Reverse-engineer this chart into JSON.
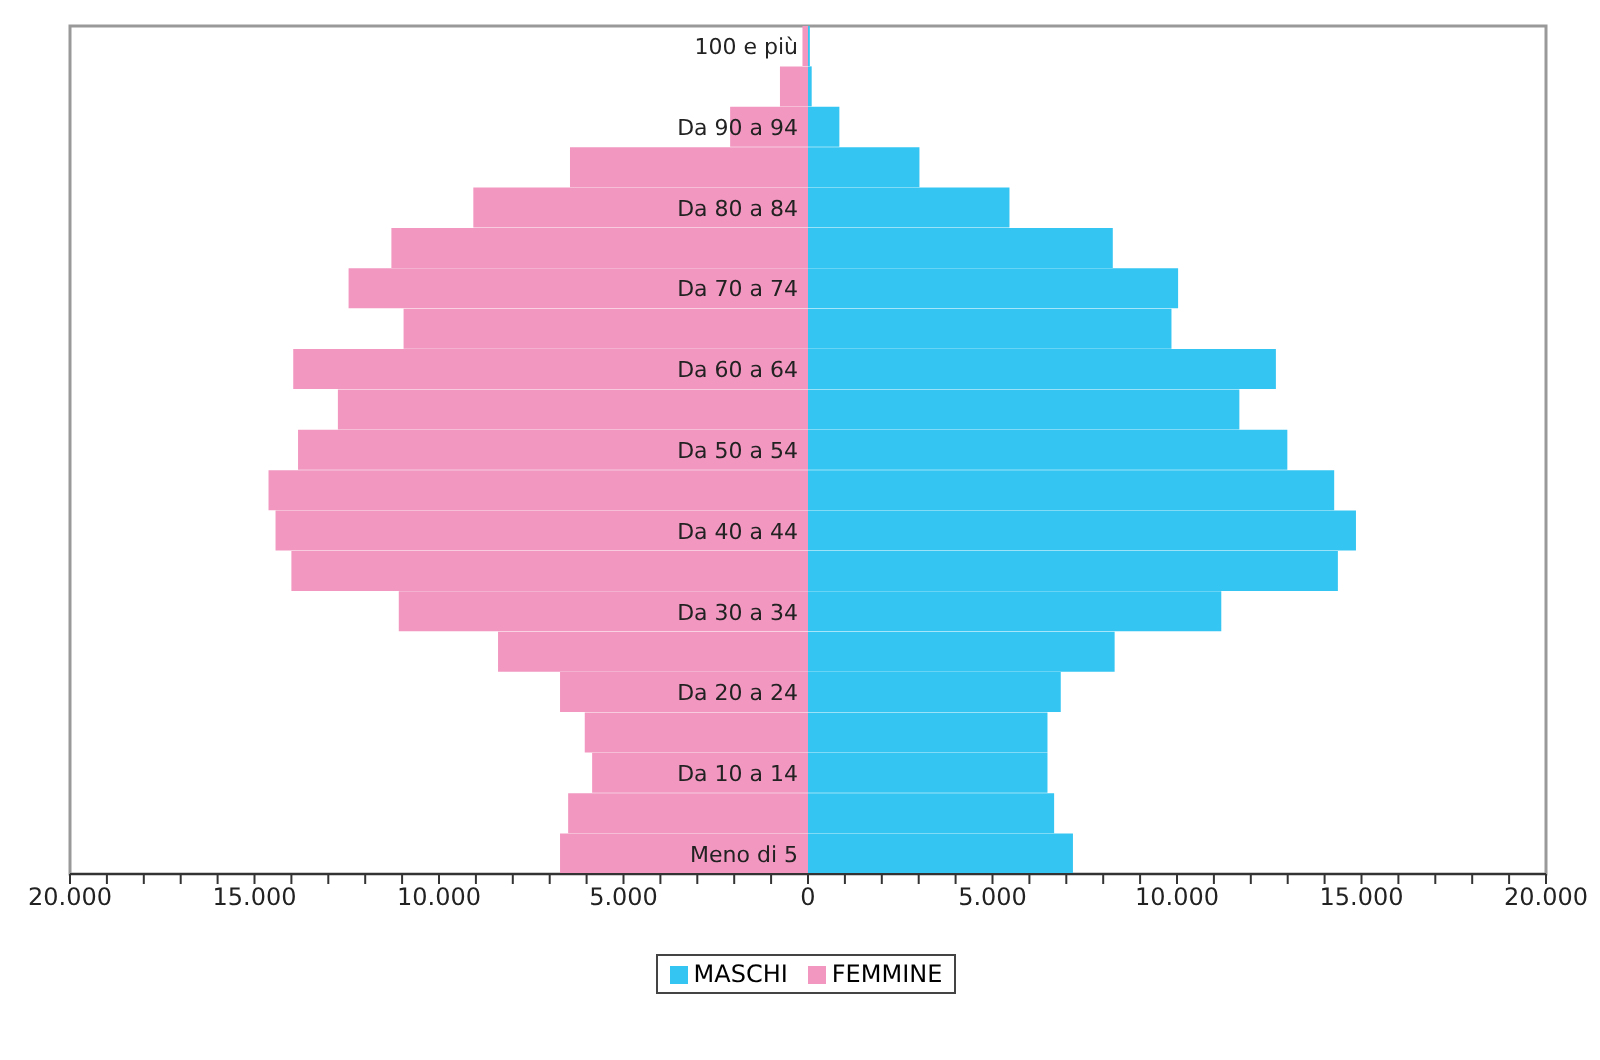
{
  "chart_data": {
    "type": "bar",
    "orientation": "horizontal",
    "stacked": true,
    "categories": [
      "100 e più",
      null,
      "Da 90 a 94",
      null,
      "Da 80 a 84",
      null,
      "Da 70 a 74",
      null,
      "Da 60 a 64",
      null,
      "Da 50 a 54",
      null,
      "Da 40 a 44",
      null,
      "Da 30 a 34",
      null,
      "Da 20 a 24",
      null,
      "Da 10 a 14",
      null,
      "Meno di 5"
    ],
    "series": [
      {
        "name": "MASCHI",
        "color": "#35c5f2",
        "values": [
          50,
          100,
          850,
          3020,
          5460,
          8260,
          10030,
          9850,
          12680,
          11690,
          12990,
          14260,
          14850,
          14360,
          11200,
          8310,
          6850,
          6490,
          6490,
          6670,
          7180
        ]
      },
      {
        "name": "FEMMINE",
        "color": "#f297c0",
        "values": [
          -150,
          -760,
          -2110,
          -6450,
          -9070,
          -11290,
          -12450,
          -10960,
          -13950,
          -12740,
          -13820,
          -14620,
          -14430,
          -14000,
          -11090,
          -8400,
          -6720,
          -6050,
          -5850,
          -6500,
          -6720
        ]
      }
    ],
    "xlim": [
      -20000,
      20000
    ],
    "xticks": [
      {
        "value": -20000,
        "label": "20.000"
      },
      {
        "value": -19000,
        "label": null
      },
      {
        "value": -18000,
        "label": null
      },
      {
        "value": -17000,
        "label": null
      },
      {
        "value": -16000,
        "label": null
      },
      {
        "value": -15000,
        "label": "15.000"
      },
      {
        "value": -14000,
        "label": null
      },
      {
        "value": -13000,
        "label": null
      },
      {
        "value": -12000,
        "label": null
      },
      {
        "value": -11000,
        "label": null
      },
      {
        "value": -10000,
        "label": "10.000"
      },
      {
        "value": -9000,
        "label": null
      },
      {
        "value": -8000,
        "label": null
      },
      {
        "value": -7000,
        "label": null
      },
      {
        "value": -6000,
        "label": null
      },
      {
        "value": -5000,
        "label": "5.000"
      },
      {
        "value": -4000,
        "label": null
      },
      {
        "value": -3000,
        "label": null
      },
      {
        "value": -2000,
        "label": null
      },
      {
        "value": -1000,
        "label": null
      },
      0,
      {
        "value": 1000,
        "label": null
      },
      {
        "value": 2000,
        "label": null
      },
      {
        "value": 3000,
        "label": null
      },
      {
        "value": 4000,
        "label": null
      },
      {
        "value": 5000,
        "label": "5.000"
      },
      {
        "value": 6000,
        "label": null
      },
      {
        "value": 7000,
        "label": null
      },
      {
        "value": 8000,
        "label": null
      },
      {
        "value": 9000,
        "label": null
      },
      {
        "value": 10000,
        "label": "10.000"
      },
      {
        "value": 11000,
        "label": null
      },
      {
        "value": 12000,
        "label": null
      },
      {
        "value": 13000,
        "label": null
      },
      {
        "value": 14000,
        "label": null
      },
      {
        "value": 15000,
        "label": "15.000"
      },
      {
        "value": 16000,
        "label": null
      },
      {
        "value": 17000,
        "label": null
      },
      {
        "value": 18000,
        "label": null
      },
      {
        "value": 19000,
        "label": null
      },
      {
        "value": 20000,
        "label": "20.000"
      }
    ],
    "grid": false,
    "legend": "bottom"
  }
}
